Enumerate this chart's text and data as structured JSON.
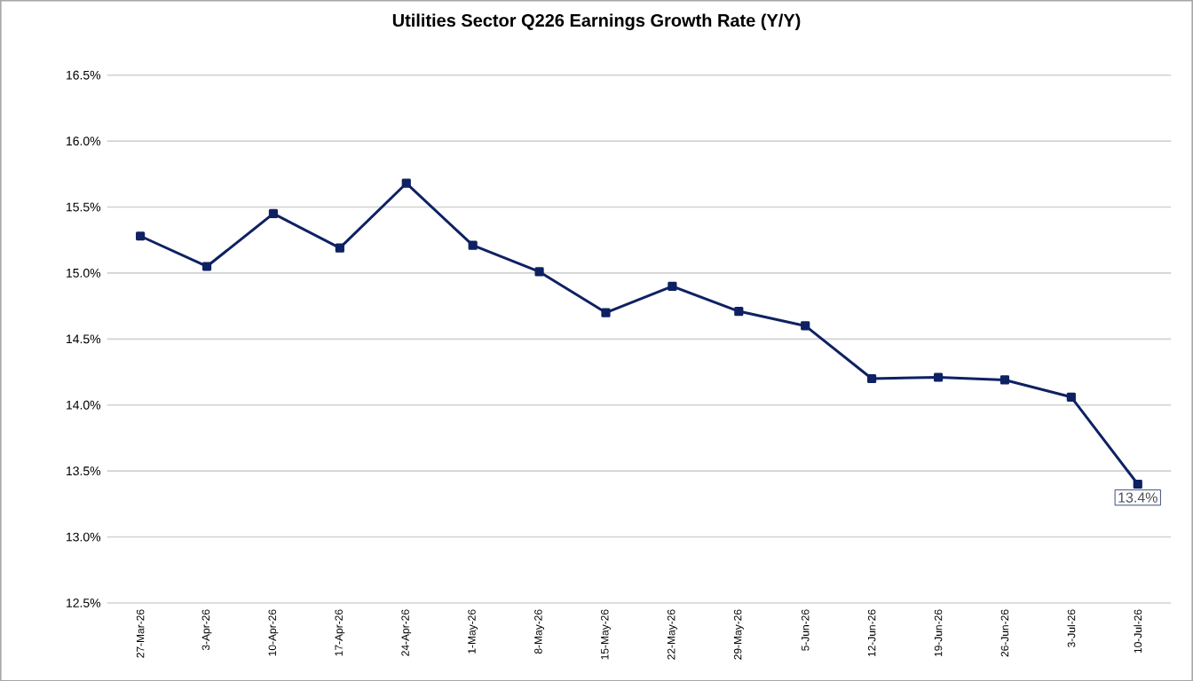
{
  "chart_data": {
    "type": "line",
    "title": "Utilities Sector Q226 Earnings Growth Rate (Y/Y)",
    "categories": [
      "27-Mar-26",
      "3-Apr-26",
      "10-Apr-26",
      "17-Apr-26",
      "24-Apr-26",
      "1-May-26",
      "8-May-26",
      "15-May-26",
      "22-May-26",
      "29-May-26",
      "5-Jun-26",
      "12-Jun-26",
      "19-Jun-26",
      "26-Jun-26",
      "3-Jul-26",
      "10-Jul-26"
    ],
    "series": [
      {
        "color": "#0e2163",
        "values": [
          15.28,
          15.05,
          15.45,
          15.19,
          15.68,
          15.21,
          15.01,
          14.7,
          14.9,
          14.71,
          14.6,
          14.2,
          14.21,
          14.19,
          14.06,
          13.4
        ],
        "value_labels": [
          null,
          null,
          null,
          null,
          null,
          null,
          null,
          null,
          null,
          null,
          null,
          null,
          null,
          null,
          null,
          "13.4%"
        ]
      }
    ],
    "ylim": [
      12.5,
      16.5
    ],
    "yticks": [
      {
        "value": 12.5,
        "label": "12.5%"
      },
      {
        "value": 13.0,
        "label": "13.0%"
      },
      {
        "value": 13.5,
        "label": "13.5%"
      },
      {
        "value": 14.0,
        "label": "14.0%"
      },
      {
        "value": 14.5,
        "label": "14.5%"
      },
      {
        "value": 15.0,
        "label": "15.0%"
      },
      {
        "value": 15.5,
        "label": "15.5%"
      },
      {
        "value": 16.0,
        "label": "16.0%"
      },
      {
        "value": 16.5,
        "label": "16.5%"
      }
    ],
    "grid": "y",
    "marker": "square",
    "line_style": "solid"
  }
}
